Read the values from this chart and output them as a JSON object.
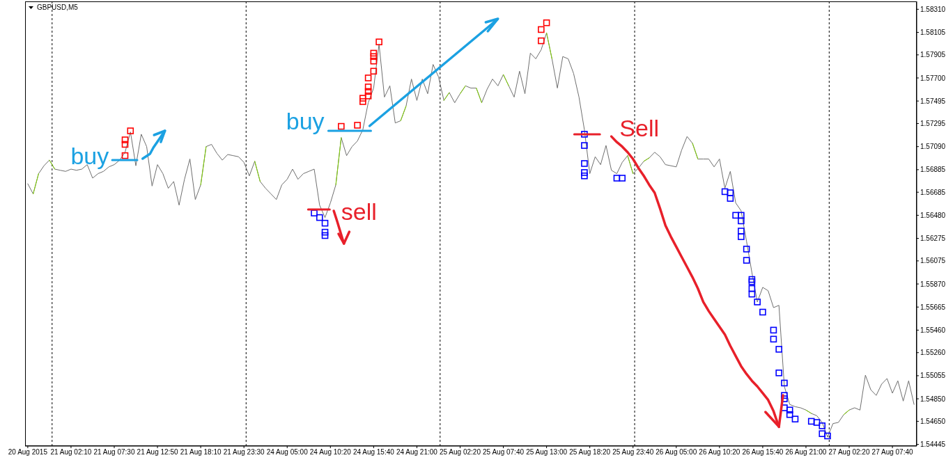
{
  "chart_data": {
    "type": "line",
    "title": "GBPUSD,M5",
    "categories": [
      "20 Aug 2015",
      null,
      null,
      null,
      null,
      null,
      null,
      null,
      "21 Aug 02:10",
      null,
      null,
      null,
      null,
      null,
      null,
      null,
      "21 Aug 07:30",
      null,
      null,
      null,
      null,
      null,
      null,
      null,
      "21 Aug 12:50",
      null,
      null,
      null,
      null,
      null,
      null,
      null,
      "21 Aug 18:10",
      null,
      null,
      null,
      null,
      null,
      null,
      null,
      "21 Aug 23:30",
      null,
      null,
      null,
      null,
      null,
      null,
      null,
      "24 Aug 05:00",
      null,
      null,
      null,
      null,
      null,
      null,
      null,
      "24 Aug 10:20",
      null,
      null,
      null,
      null,
      null,
      null,
      null,
      "24 Aug 15:40",
      null,
      null,
      null,
      null,
      null,
      null,
      null,
      "24 Aug 21:00",
      null,
      null,
      null,
      null,
      null,
      null,
      null,
      "25 Aug 02:20",
      null,
      null,
      null,
      null,
      null,
      null,
      null,
      "25 Aug 07:40",
      null,
      null,
      null,
      null,
      null,
      null,
      null,
      "25 Aug 13:00",
      null,
      null,
      null,
      null,
      null,
      null,
      null,
      "25 Aug 18:20",
      null,
      null,
      null,
      null,
      null,
      null,
      null,
      "25 Aug 23:40",
      null,
      null,
      null,
      null,
      null,
      null,
      null,
      "26 Aug 05:00",
      null,
      null,
      null,
      null,
      null,
      null,
      null,
      "26 Aug 10:20",
      null,
      null,
      null,
      null,
      null,
      null,
      null,
      "26 Aug 15:40",
      null,
      null,
      null,
      null,
      null,
      null,
      null,
      "26 Aug 21:00",
      null,
      null,
      null,
      null,
      null,
      null,
      null,
      "27 Aug 02:20",
      null,
      null,
      null,
      null,
      null,
      null,
      null,
      "27 Aug 07:40",
      null,
      null,
      null,
      null
    ],
    "ylim": [
      1.5443,
      1.5838
    ],
    "yticks": [
      {
        "value": 1.5831,
        "label": "1.58310"
      },
      1.58105,
      1.57905,
      {
        "value": 1.577,
        "label": "1.57700"
      },
      1.57495,
      1.57295,
      {
        "value": 1.5709,
        "label": "1.57090"
      },
      1.56885,
      1.56685,
      {
        "value": 1.5648,
        "label": "1.56480"
      },
      1.56275,
      1.56075,
      {
        "value": 1.5587,
        "label": "1.55870"
      },
      1.55665,
      {
        "value": 1.5546,
        "label": "1.55460"
      },
      {
        "value": 1.5526,
        "label": "1.55260"
      },
      1.55055,
      {
        "value": 1.5485,
        "label": "1.54850"
      },
      {
        "value": 1.5465,
        "label": "1.54650"
      },
      1.54445
    ],
    "series": [
      {
        "color": "#6f6f6f",
        "values": [
          1.5676,
          1.5667,
          1.5685,
          1.5692,
          1.5697,
          1.5689,
          1.5688,
          1.5687,
          1.5689,
          1.5688,
          1.5689,
          1.5693,
          1.5681,
          1.5685,
          1.5687,
          1.5691,
          1.5693,
          1.5697,
          1.5704,
          1.5722,
          1.5692,
          1.572,
          1.5709,
          1.5674,
          1.5693,
          1.5685,
          1.5672,
          1.5678,
          1.5657,
          1.568,
          1.5698,
          1.5662,
          1.5675,
          1.5709,
          1.5711,
          1.5703,
          1.5697,
          1.5702,
          1.5701,
          1.57,
          1.5695,
          1.5683,
          1.5696,
          1.5678,
          1.5672,
          1.5667,
          1.5662,
          1.5675,
          1.568,
          1.5689,
          1.568,
          1.5685,
          1.5687,
          1.5689,
          1.5657,
          1.5646,
          1.5659,
          1.5675,
          1.5717,
          1.5701,
          1.5709,
          1.5714,
          1.5724,
          1.5748,
          1.5761,
          1.58,
          1.5753,
          1.5763,
          1.573,
          1.5732,
          1.5745,
          1.5769,
          1.575,
          1.5769,
          1.5756,
          1.5782,
          1.5771,
          1.575,
          1.5757,
          1.5748,
          1.5756,
          1.5763,
          1.5761,
          1.5761,
          1.5748,
          1.576,
          1.5769,
          1.5763,
          1.5773,
          1.5763,
          1.5753,
          1.5776,
          1.5756,
          1.5792,
          1.5787,
          1.5795,
          1.581,
          1.5787,
          1.5761,
          1.5789,
          1.5787,
          1.5774,
          1.5753,
          1.5724,
          1.5685,
          1.57,
          1.5693,
          1.571,
          1.5688,
          1.5685,
          1.5695,
          1.5701,
          1.5685,
          1.569,
          1.5696,
          1.5699,
          1.5704,
          1.57,
          1.5693,
          1.5692,
          1.5691,
          1.5706,
          1.5718,
          1.5712,
          1.5698,
          1.5698,
          1.5698,
          1.5691,
          1.5698,
          1.5672,
          1.5687,
          1.5659,
          1.5652,
          1.5625,
          1.5597,
          1.5571,
          1.5584,
          1.5581,
          1.5566,
          1.5568,
          1.5496,
          1.548,
          1.5478,
          1.5477,
          1.5475,
          1.5472,
          1.547,
          1.5464,
          1.5451,
          1.5463,
          1.5464,
          1.5471,
          1.5475,
          1.5477,
          1.5475,
          1.5506,
          1.5493,
          1.5488,
          1.5498,
          1.5503,
          1.549,
          1.5501,
          1.5483,
          1.5501,
          1.548
        ]
      },
      {
        "color": "#7fd000",
        "values": [
          null,
          1.5667,
          1.5685,
          null,
          1.5697,
          1.5689,
          null,
          null,
          null,
          null,
          null,
          null,
          null,
          null,
          null,
          null,
          null,
          null,
          null,
          null,
          null,
          null,
          null,
          null,
          null,
          null,
          null,
          null,
          null,
          null,
          null,
          null,
          1.5675,
          1.5709,
          null,
          null,
          null,
          null,
          null,
          null,
          null,
          null,
          1.5696,
          1.5678,
          null,
          null,
          null,
          null,
          null,
          null,
          null,
          null,
          null,
          null,
          null,
          null,
          null,
          1.5675,
          1.5717,
          null,
          null,
          null,
          null,
          null,
          null,
          null,
          null,
          null,
          null,
          1.5732,
          1.5745,
          null,
          null,
          null,
          null,
          null,
          null,
          1.575,
          1.5757,
          null,
          1.5756,
          1.5763,
          null,
          1.5761,
          1.5748,
          null,
          null,
          null,
          1.5773,
          1.5763,
          null,
          null,
          null,
          null,
          null,
          null,
          1.581,
          1.5787,
          null,
          null,
          null,
          null,
          null,
          null,
          null,
          null,
          null,
          null,
          null,
          null,
          null,
          1.5701,
          1.5685,
          null,
          1.5696,
          1.5699,
          null,
          null,
          null,
          null,
          null,
          null,
          null,
          1.5712,
          1.5698,
          null,
          null,
          null,
          null,
          null,
          null,
          null,
          null,
          null,
          null,
          null,
          null,
          null,
          null,
          null,
          null,
          null,
          null,
          null,
          1.5475,
          1.5472,
          null,
          null,
          null,
          null,
          null,
          1.5471,
          1.5475,
          null,
          null,
          null,
          null,
          null,
          null,
          null,
          null,
          null,
          null,
          null,
          null
        ]
      },
      {
        "type": "scatter",
        "marker": "square",
        "color": "#ff0000",
        "values": [
          null,
          null,
          null,
          null,
          null,
          null,
          null,
          null,
          null,
          null,
          null,
          null,
          null,
          null,
          null,
          null,
          null,
          null,
          1.5701,
          1.5723,
          null,
          null,
          null,
          null,
          null,
          null,
          null,
          null,
          null,
          null,
          null,
          null,
          null,
          null,
          null,
          null,
          null,
          null,
          null,
          null,
          null,
          null,
          null,
          null,
          null,
          null,
          null,
          null,
          null,
          null,
          null,
          null,
          null,
          null,
          null,
          null,
          null,
          null,
          1.5727,
          null,
          null,
          1.5728,
          1.5749,
          1.5754,
          1.5776,
          1.5802,
          null,
          null,
          null,
          null,
          null,
          null,
          null,
          null,
          null,
          null,
          null,
          null,
          null,
          null,
          null,
          null,
          null,
          null,
          null,
          null,
          null,
          null,
          null,
          null,
          null,
          null,
          null,
          null,
          null,
          1.5803,
          1.5819,
          null,
          null,
          null,
          null,
          null,
          null,
          null,
          null,
          null,
          null,
          null,
          null,
          null,
          null,
          null,
          null,
          null,
          null,
          null,
          null,
          null,
          null,
          null,
          null,
          null,
          null,
          null,
          null,
          null,
          null,
          null,
          null,
          null,
          null,
          null,
          null,
          null,
          null,
          null,
          null,
          null,
          null,
          null,
          null,
          null,
          null,
          null,
          null,
          null,
          null,
          null,
          null,
          null,
          null,
          null,
          null,
          null,
          null,
          null,
          null,
          null,
          null,
          null,
          null,
          null,
          null,
          null,
          null
        ]
      },
      {
        "type": "scatter",
        "marker": "square",
        "color": "#ff0000",
        "values": [
          null,
          null,
          null,
          null,
          null,
          null,
          null,
          null,
          null,
          null,
          null,
          null,
          null,
          null,
          null,
          null,
          null,
          null,
          1.5711,
          null,
          null,
          null,
          null,
          null,
          null,
          null,
          null,
          null,
          null,
          null,
          null,
          null,
          null,
          null,
          null,
          null,
          null,
          null,
          null,
          null,
          null,
          null,
          null,
          null,
          null,
          null,
          null,
          null,
          null,
          null,
          null,
          null,
          null,
          null,
          null,
          null,
          null,
          null,
          null,
          null,
          null,
          null,
          1.5752,
          1.5758,
          1.5785,
          null,
          null,
          null,
          null,
          null,
          null,
          null,
          null,
          null,
          null,
          null,
          null,
          null,
          null,
          null,
          null,
          null,
          null,
          null,
          null,
          null,
          null,
          null,
          null,
          null,
          null,
          null,
          null,
          null,
          null,
          1.5813,
          null,
          null,
          null,
          null,
          null,
          null,
          null,
          null,
          null,
          null,
          null,
          null,
          null,
          null,
          null,
          null,
          null,
          null,
          null,
          null,
          null,
          null,
          null,
          null,
          null,
          null,
          null,
          null,
          null,
          null,
          null,
          null,
          null,
          null,
          null,
          null,
          null,
          null,
          null,
          null,
          null,
          null,
          null,
          null,
          null,
          null,
          null,
          null,
          null,
          null,
          null,
          null,
          null,
          null,
          null,
          null,
          null,
          null,
          null,
          null,
          null,
          null,
          null,
          null,
          null,
          null,
          null,
          null,
          null
        ]
      },
      {
        "type": "scatter",
        "marker": "square",
        "color": "#ff0000",
        "values": [
          null,
          null,
          null,
          null,
          null,
          null,
          null,
          null,
          null,
          null,
          null,
          null,
          null,
          null,
          null,
          null,
          null,
          null,
          1.5715,
          null,
          null,
          null,
          null,
          null,
          null,
          null,
          null,
          null,
          null,
          null,
          null,
          null,
          null,
          null,
          null,
          null,
          null,
          null,
          null,
          null,
          null,
          null,
          null,
          null,
          null,
          null,
          null,
          null,
          null,
          null,
          null,
          null,
          null,
          null,
          null,
          null,
          null,
          null,
          null,
          null,
          null,
          null,
          null,
          1.5762,
          1.5789,
          null,
          null,
          null,
          null,
          null,
          null,
          null,
          null,
          null,
          null,
          null,
          null,
          null,
          null,
          null,
          null,
          null,
          null,
          null,
          null,
          null,
          null,
          null,
          null,
          null,
          null,
          null,
          null,
          null,
          null,
          null,
          null,
          null,
          null,
          null,
          null,
          null,
          null,
          null,
          null,
          null,
          null,
          null,
          null,
          null,
          null,
          null,
          null,
          null,
          null,
          null,
          null,
          null,
          null,
          null,
          null,
          null,
          null,
          null,
          null,
          null,
          null,
          null,
          null,
          null,
          null,
          null,
          null,
          null,
          null,
          null,
          null,
          null,
          null,
          null,
          null,
          null,
          null,
          null,
          null,
          null,
          null,
          null,
          null,
          null,
          null,
          null,
          null,
          null,
          null,
          null,
          null,
          null,
          null,
          null,
          null,
          null,
          null,
          null,
          null
        ]
      },
      {
        "type": "scatter",
        "marker": "square",
        "color": "#ff0000",
        "values": [
          null,
          null,
          null,
          null,
          null,
          null,
          null,
          null,
          null,
          null,
          null,
          null,
          null,
          null,
          null,
          null,
          null,
          null,
          null,
          null,
          null,
          null,
          null,
          null,
          null,
          null,
          null,
          null,
          null,
          null,
          null,
          null,
          null,
          null,
          null,
          null,
          null,
          null,
          null,
          null,
          null,
          null,
          null,
          null,
          null,
          null,
          null,
          null,
          null,
          null,
          null,
          null,
          null,
          null,
          null,
          null,
          null,
          null,
          null,
          null,
          null,
          null,
          null,
          1.577,
          1.5792,
          null,
          null,
          null,
          null,
          null,
          null,
          null,
          null,
          null,
          null,
          null,
          null,
          null,
          null,
          null,
          null,
          null,
          null,
          null,
          null,
          null,
          null,
          null,
          null,
          null,
          null,
          null,
          null,
          null,
          null,
          null,
          null,
          null,
          null,
          null,
          null,
          null,
          null,
          null,
          null,
          null,
          null,
          null,
          null,
          null,
          null,
          null,
          null,
          null,
          null,
          null,
          null,
          null,
          null,
          null,
          null,
          null,
          null,
          null,
          null,
          null,
          null,
          null,
          null,
          null,
          null,
          null,
          null,
          null,
          null,
          null,
          null,
          null,
          null,
          null,
          null,
          null,
          null,
          null,
          null,
          null,
          null,
          null,
          null,
          null,
          null,
          null,
          null,
          null,
          null,
          null,
          null,
          null,
          null,
          null,
          null,
          null,
          null,
          null,
          null
        ]
      },
      {
        "type": "scatter",
        "marker": "square",
        "color": "#0000ff",
        "values": [
          null,
          null,
          null,
          null,
          null,
          null,
          null,
          null,
          null,
          null,
          null,
          null,
          null,
          null,
          null,
          null,
          null,
          null,
          null,
          null,
          null,
          null,
          null,
          null,
          null,
          null,
          null,
          null,
          null,
          null,
          null,
          null,
          null,
          null,
          null,
          null,
          null,
          null,
          null,
          null,
          null,
          null,
          null,
          null,
          null,
          null,
          null,
          null,
          null,
          null,
          null,
          null,
          null,
          1.565,
          1.5646,
          1.5641,
          null,
          null,
          null,
          null,
          null,
          null,
          null,
          null,
          null,
          null,
          null,
          null,
          null,
          null,
          null,
          null,
          null,
          null,
          null,
          null,
          null,
          null,
          null,
          null,
          null,
          null,
          null,
          null,
          null,
          null,
          null,
          null,
          null,
          null,
          null,
          null,
          null,
          null,
          null,
          null,
          null,
          null,
          null,
          null,
          null,
          null,
          null,
          1.572,
          null,
          null,
          null,
          null,
          null,
          1.5681,
          1.5681,
          null,
          null,
          null,
          null,
          null,
          null,
          null,
          null,
          null,
          null,
          null,
          null,
          null,
          null,
          null,
          null,
          null,
          null,
          1.5669,
          1.5668,
          1.5648,
          1.5648,
          1.5618,
          1.5591,
          1.5571,
          1.5562,
          null,
          1.5546,
          1.5529,
          1.5499,
          1.5475,
          1.5467,
          null,
          null,
          1.5465,
          1.5464,
          1.5461,
          1.5452,
          null,
          null,
          null,
          null,
          null,
          null,
          null,
          null,
          null,
          null,
          null,
          null,
          null,
          null,
          null,
          null
        ]
      },
      {
        "type": "scatter",
        "marker": "square",
        "color": "#0000ff",
        "values": [
          null,
          null,
          null,
          null,
          null,
          null,
          null,
          null,
          null,
          null,
          null,
          null,
          null,
          null,
          null,
          null,
          null,
          null,
          null,
          null,
          null,
          null,
          null,
          null,
          null,
          null,
          null,
          null,
          null,
          null,
          null,
          null,
          null,
          null,
          null,
          null,
          null,
          null,
          null,
          null,
          null,
          null,
          null,
          null,
          null,
          null,
          null,
          null,
          null,
          null,
          null,
          null,
          null,
          null,
          null,
          1.5633,
          null,
          null,
          null,
          null,
          null,
          null,
          null,
          null,
          null,
          null,
          null,
          null,
          null,
          null,
          null,
          null,
          null,
          null,
          null,
          null,
          null,
          null,
          null,
          null,
          null,
          null,
          null,
          null,
          null,
          null,
          null,
          null,
          null,
          null,
          null,
          null,
          null,
          null,
          null,
          null,
          null,
          null,
          null,
          null,
          null,
          null,
          null,
          1.571,
          null,
          null,
          null,
          null,
          null,
          null,
          null,
          null,
          null,
          null,
          null,
          null,
          null,
          null,
          null,
          null,
          null,
          null,
          null,
          null,
          null,
          null,
          null,
          null,
          null,
          null,
          1.5663,
          null,
          1.5643,
          1.5608,
          1.5589,
          null,
          null,
          null,
          1.5538,
          1.5508,
          1.5488,
          1.5471,
          null,
          null,
          null,
          null,
          null,
          1.5454,
          null,
          null,
          null,
          null,
          null,
          null,
          null,
          null,
          null,
          null,
          null,
          null,
          null,
          null,
          null,
          null,
          null
        ]
      },
      {
        "type": "scatter",
        "marker": "square",
        "color": "#0000ff",
        "values": [
          null,
          null,
          null,
          null,
          null,
          null,
          null,
          null,
          null,
          null,
          null,
          null,
          null,
          null,
          null,
          null,
          null,
          null,
          null,
          null,
          null,
          null,
          null,
          null,
          null,
          null,
          null,
          null,
          null,
          null,
          null,
          null,
          null,
          null,
          null,
          null,
          null,
          null,
          null,
          null,
          null,
          null,
          null,
          null,
          null,
          null,
          null,
          null,
          null,
          null,
          null,
          null,
          null,
          null,
          null,
          1.563,
          null,
          null,
          null,
          null,
          null,
          null,
          null,
          null,
          null,
          null,
          null,
          null,
          null,
          null,
          null,
          null,
          null,
          null,
          null,
          null,
          null,
          null,
          null,
          null,
          null,
          null,
          null,
          null,
          null,
          null,
          null,
          null,
          null,
          null,
          null,
          null,
          null,
          null,
          null,
          null,
          null,
          null,
          null,
          null,
          null,
          null,
          null,
          1.5694,
          null,
          null,
          null,
          null,
          null,
          null,
          null,
          null,
          null,
          null,
          null,
          null,
          null,
          null,
          null,
          null,
          null,
          null,
          null,
          null,
          null,
          null,
          null,
          null,
          null,
          null,
          null,
          null,
          1.5634,
          null,
          1.5583,
          null,
          null,
          null,
          null,
          null,
          1.5485,
          null,
          null,
          null,
          null,
          null,
          null,
          null,
          null,
          null,
          null,
          null,
          null,
          null,
          null,
          null,
          null,
          null,
          null,
          null,
          null,
          null,
          null,
          null,
          null
        ]
      },
      {
        "type": "scatter",
        "marker": "square",
        "color": "#0000ff",
        "values": [
          null,
          null,
          null,
          null,
          null,
          null,
          null,
          null,
          null,
          null,
          null,
          null,
          null,
          null,
          null,
          null,
          null,
          null,
          null,
          null,
          null,
          null,
          null,
          null,
          null,
          null,
          null,
          null,
          null,
          null,
          null,
          null,
          null,
          null,
          null,
          null,
          null,
          null,
          null,
          null,
          null,
          null,
          null,
          null,
          null,
          null,
          null,
          null,
          null,
          null,
          null,
          null,
          null,
          null,
          null,
          null,
          null,
          null,
          null,
          null,
          null,
          null,
          null,
          null,
          null,
          null,
          null,
          null,
          null,
          null,
          null,
          null,
          null,
          null,
          null,
          null,
          null,
          null,
          null,
          null,
          null,
          null,
          null,
          null,
          null,
          null,
          null,
          null,
          null,
          null,
          null,
          null,
          null,
          null,
          null,
          null,
          null,
          null,
          null,
          null,
          null,
          null,
          null,
          1.5686,
          null,
          null,
          null,
          null,
          null,
          null,
          null,
          null,
          null,
          null,
          null,
          null,
          null,
          null,
          null,
          null,
          null,
          null,
          null,
          null,
          null,
          null,
          null,
          null,
          null,
          null,
          null,
          null,
          1.5629,
          null,
          1.5578,
          null,
          null,
          null,
          null,
          null,
          1.5477,
          null,
          null,
          null,
          null,
          null,
          null,
          null,
          null,
          null,
          null,
          null,
          null,
          null,
          null,
          null,
          null,
          null,
          null,
          null,
          null,
          null,
          null,
          null,
          null
        ]
      },
      {
        "type": "scatter",
        "marker": "square",
        "color": "#0000ff",
        "values": [
          null,
          null,
          null,
          null,
          null,
          null,
          null,
          null,
          null,
          null,
          null,
          null,
          null,
          null,
          null,
          null,
          null,
          null,
          null,
          null,
          null,
          null,
          null,
          null,
          null,
          null,
          null,
          null,
          null,
          null,
          null,
          null,
          null,
          null,
          null,
          null,
          null,
          null,
          null,
          null,
          null,
          null,
          null,
          null,
          null,
          null,
          null,
          null,
          null,
          null,
          null,
          null,
          null,
          null,
          null,
          null,
          null,
          null,
          null,
          null,
          null,
          null,
          null,
          null,
          null,
          null,
          null,
          null,
          null,
          null,
          null,
          null,
          null,
          null,
          null,
          null,
          null,
          null,
          null,
          null,
          null,
          null,
          null,
          null,
          null,
          null,
          null,
          null,
          null,
          null,
          null,
          null,
          null,
          null,
          null,
          null,
          null,
          null,
          null,
          null,
          null,
          null,
          null,
          1.5683,
          null,
          null,
          null,
          null,
          null,
          null,
          null,
          null,
          null,
          null,
          null,
          null,
          null,
          null,
          null,
          null,
          null,
          null,
          null,
          null,
          null,
          null,
          null,
          null,
          null,
          null,
          null,
          null,
          null,
          null,
          null,
          null,
          null,
          null,
          null,
          null,
          null,
          null,
          null,
          null,
          null,
          null,
          null,
          null,
          null,
          null,
          null,
          null,
          null,
          null,
          null,
          null,
          null,
          null,
          null,
          null,
          null,
          null,
          null,
          null,
          null
        ]
      },
      {
        "color": "#e8202a",
        "values": [
          null,
          null,
          null,
          null,
          null,
          null,
          null,
          null,
          null,
          null,
          null,
          null,
          null,
          null,
          null,
          null,
          null,
          null,
          null,
          null,
          null,
          null,
          null,
          null,
          null,
          null,
          null,
          null,
          null,
          null,
          null,
          null,
          null,
          null,
          null,
          null,
          null,
          null,
          null,
          null,
          null,
          null,
          null,
          null,
          null,
          null,
          null,
          null,
          null,
          null,
          null,
          null,
          null,
          null,
          null,
          null,
          null,
          null,
          null,
          null,
          null,
          null,
          null,
          null,
          null,
          null,
          null,
          null,
          null,
          null,
          null,
          null,
          null,
          null,
          null,
          null,
          null,
          null,
          null,
          null,
          null,
          null,
          null,
          null,
          null,
          null,
          null,
          null,
          null,
          null,
          null,
          null,
          null,
          null,
          null,
          null,
          null,
          null,
          null,
          null,
          null,
          null,
          null,
          null,
          null,
          null,
          null,
          null,
          1.5718,
          1.5713,
          1.5709,
          1.5704,
          1.5698,
          1.569,
          1.5683,
          1.5675,
          1.5668,
          1.5654,
          1.5639,
          1.5629,
          1.562,
          1.5611,
          1.5602,
          1.5593,
          1.5583,
          1.5571,
          1.5563,
          1.5556,
          1.5549,
          1.5542,
          1.5532,
          1.5523,
          1.5514,
          1.5507,
          1.5501,
          1.5496,
          1.549,
          1.5484,
          1.5474,
          1.546,
          null,
          null,
          null,
          null,
          null,
          null,
          null,
          null,
          null,
          null,
          null,
          null,
          null,
          null,
          null,
          null,
          null,
          null,
          null,
          null,
          null,
          null,
          null,
          null,
          null
        ]
      }
    ],
    "annotations": [
      "buy",
      "buy",
      "sell",
      "Sell"
    ]
  }
}
